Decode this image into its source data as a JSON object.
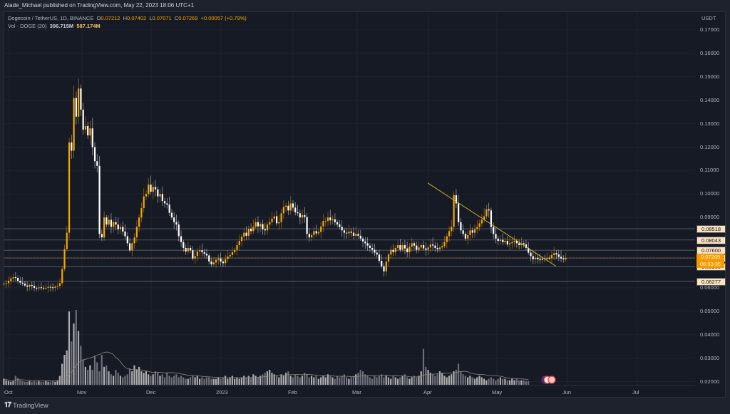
{
  "header": {
    "publisher_text": "Alade_Michael published on TradingView.com, May 22, 2023 18:06 UTC+1"
  },
  "legend": {
    "symbol": "Dogecoin / TetherUS, 1D, BINANCE",
    "o_label": "O",
    "o_value": "0.07212",
    "h_label": "H",
    "h_value": "0.07402",
    "l_label": "L",
    "l_value": "0.07071",
    "c_label": "C",
    "c_value": "0.07269",
    "change": "+0.00057 (+0.79%)",
    "volume_label": "Vol · DOGE (20)",
    "volume_value": "396.715M",
    "volume_ma_value": "587.174M"
  },
  "price_axis": {
    "currency": "USDT",
    "ticks": [
      "0.17000",
      "0.16000",
      "0.15000",
      "0.14000",
      "0.13000",
      "0.12000",
      "0.11000",
      "0.10000",
      "0.09000",
      "0.06000",
      "0.05000",
      "0.04000",
      "0.03000",
      "0.02000"
    ]
  },
  "price_levels": [
    {
      "label": "0.08518",
      "price": 0.08518
    },
    {
      "label": "0.08043",
      "price": 0.08043
    },
    {
      "label": "0.07600",
      "price": 0.076
    },
    {
      "label": "0.07272",
      "price": 0.07272
    },
    {
      "label": "0.06906",
      "price": 0.06906
    },
    {
      "label": "0.06277",
      "price": 0.06277
    }
  ],
  "current_price": {
    "label": "0.07269",
    "countdown": "06:53:35",
    "price": 0.07269
  },
  "time_axis": {
    "labels": [
      {
        "text": "Oct",
        "x": 8
      },
      {
        "text": "Nov",
        "x": 110
      },
      {
        "text": "Dec",
        "x": 207
      },
      {
        "text": "2023",
        "x": 305
      },
      {
        "text": "Feb",
        "x": 406
      },
      {
        "text": "Mar",
        "x": 496
      },
      {
        "text": "Apr",
        "x": 596
      },
      {
        "text": "May",
        "x": 692
      },
      {
        "text": "Jun",
        "x": 791
      },
      {
        "text": "Jul",
        "x": 889
      }
    ]
  },
  "footer": {
    "brand": "TradingView"
  },
  "colors": {
    "up": "#f7a600",
    "down": "#ffffff",
    "trendline": "#c8b428",
    "level_line": "#4a4e58",
    "grid": "#20242f",
    "current_line": "#8a6a30"
  },
  "chart_data": {
    "type": "candlestick",
    "title": "Dogecoin / TetherUS, 1D, BINANCE",
    "xlabel": "",
    "ylabel": "USDT",
    "ylim": [
      0.015,
      0.175
    ],
    "start_date": "2022-09-30",
    "interval": "1D",
    "closes": [
      0.0618,
      0.062,
      0.063,
      0.064,
      0.0645,
      0.0642,
      0.063,
      0.0622,
      0.0618,
      0.061,
      0.0605,
      0.0612,
      0.0608,
      0.06,
      0.0598,
      0.0602,
      0.06,
      0.0598,
      0.06,
      0.0604,
      0.0602,
      0.06,
      0.0605,
      0.0608,
      0.062,
      0.068,
      0.0765,
      0.0835,
      0.122,
      0.1185,
      0.141,
      0.133,
      0.145,
      0.136,
      0.1275,
      0.129,
      0.125,
      0.128,
      0.12,
      0.114,
      0.112,
      0.083,
      0.0815,
      0.09,
      0.087,
      0.089,
      0.086,
      0.088,
      0.087,
      0.085,
      0.086,
      0.084,
      0.082,
      0.079,
      0.076,
      0.079,
      0.0815,
      0.086,
      0.09,
      0.094,
      0.099,
      0.1,
      0.104,
      0.101,
      0.103,
      0.102,
      0.099,
      0.1,
      0.097,
      0.096,
      0.0955,
      0.092,
      0.09,
      0.088,
      0.087,
      0.082,
      0.0795,
      0.077,
      0.0755,
      0.077,
      0.076,
      0.0725,
      0.0735,
      0.0755,
      0.076,
      0.0752,
      0.0745,
      0.0738,
      0.0712,
      0.07,
      0.0708,
      0.072,
      0.0725,
      0.0712,
      0.0705,
      0.0722,
      0.0734,
      0.074,
      0.0752,
      0.0762,
      0.0782,
      0.08,
      0.0818,
      0.0835,
      0.0822,
      0.0852,
      0.0842,
      0.086,
      0.088,
      0.0862,
      0.0872,
      0.085,
      0.0845,
      0.087,
      0.088,
      0.0895,
      0.0905,
      0.0875,
      0.088,
      0.0918,
      0.0945,
      0.095,
      0.093,
      0.096,
      0.0942,
      0.0922,
      0.0918,
      0.09,
      0.091,
      0.0902,
      0.083,
      0.0815,
      0.0825,
      0.0842,
      0.0832,
      0.0838,
      0.0862,
      0.0885,
      0.0885,
      0.09,
      0.0888,
      0.0892,
      0.088,
      0.087,
      0.086,
      0.0845,
      0.0835,
      0.0832,
      0.084,
      0.0835,
      0.0822,
      0.083,
      0.0822,
      0.081,
      0.0798,
      0.079,
      0.078,
      0.077,
      0.0762,
      0.075,
      0.0742,
      0.0715,
      0.0692,
      0.067,
      0.0712,
      0.0742,
      0.0762,
      0.0752,
      0.077,
      0.0782,
      0.0762,
      0.0782,
      0.0768,
      0.0752,
      0.0775,
      0.079,
      0.078,
      0.0762,
      0.0772,
      0.0782,
      0.0768,
      0.0762,
      0.0772,
      0.0785,
      0.078,
      0.077,
      0.0765,
      0.0772,
      0.0778,
      0.0795,
      0.082,
      0.0842,
      0.086,
      0.0995,
      0.096,
      0.088,
      0.0845,
      0.083,
      0.081,
      0.0825,
      0.0845,
      0.0835,
      0.085,
      0.086,
      0.0875,
      0.089,
      0.0905,
      0.0935,
      0.093,
      0.086,
      0.083,
      0.081,
      0.08,
      0.0805,
      0.0795,
      0.08,
      0.0785,
      0.079,
      0.0795,
      0.08,
      0.079,
      0.0782,
      0.079,
      0.0785,
      0.077,
      0.075,
      0.0735,
      0.0722,
      0.0728,
      0.0722,
      0.0718,
      0.0725,
      0.0722,
      0.0728,
      0.0726,
      0.074,
      0.0748,
      0.0742,
      0.0732,
      0.0725,
      0.07212,
      0.07269
    ],
    "volumes_rel": [
      8,
      6,
      5,
      4,
      5,
      12,
      9,
      6,
      5,
      4,
      4,
      5,
      4,
      5,
      4,
      5,
      4,
      4,
      5,
      4,
      4,
      5,
      4,
      6,
      12,
      28,
      40,
      46,
      98,
      58,
      82,
      100,
      72,
      52,
      34,
      24,
      20,
      26,
      20,
      38,
      30,
      18,
      40,
      24,
      26,
      18,
      14,
      12,
      20,
      16,
      12,
      10,
      12,
      14,
      22,
      18,
      26,
      20,
      24,
      18,
      16,
      18,
      14,
      12,
      14,
      18,
      16,
      12,
      14,
      10,
      16,
      12,
      10,
      12,
      14,
      10,
      12,
      10,
      8,
      8,
      10,
      12,
      10,
      12,
      8,
      10,
      8,
      10,
      10,
      8,
      8,
      8,
      10,
      8,
      10,
      12,
      8,
      10,
      12,
      8,
      10,
      8,
      10,
      12,
      10,
      12,
      10,
      14,
      12,
      10,
      12,
      14,
      16,
      18,
      20,
      16,
      14,
      12,
      10,
      14,
      12,
      16,
      18,
      12,
      10,
      14,
      12,
      10,
      12,
      16,
      14,
      10,
      12,
      10,
      12,
      8,
      10,
      12,
      10,
      14,
      12,
      10,
      8,
      12,
      10,
      12,
      14,
      10,
      8,
      10,
      12,
      14,
      16,
      20,
      18,
      14,
      12,
      10,
      8,
      12,
      10,
      12,
      14,
      10,
      12,
      10,
      8,
      12,
      10,
      8,
      10,
      12,
      14,
      10,
      8,
      10,
      12,
      10,
      12,
      18,
      48,
      24,
      20,
      16,
      14,
      12,
      14,
      18,
      16,
      12,
      10,
      12,
      14,
      18,
      20,
      28,
      18,
      14,
      12,
      10,
      12,
      10,
      8,
      10,
      12,
      10,
      8,
      6,
      8,
      10,
      8,
      6,
      8,
      10,
      8,
      8,
      6,
      6,
      8,
      6,
      8,
      6,
      6,
      6,
      5,
      5
    ],
    "trendline": {
      "from": {
        "x": 600,
        "price": 0.1047
      },
      "to": {
        "x": 780,
        "price": 0.0692
      }
    },
    "horizontal_levels": [
      0.08518,
      0.08043,
      0.076,
      0.07272,
      0.06906,
      0.06277
    ],
    "last_close": 0.07269
  }
}
